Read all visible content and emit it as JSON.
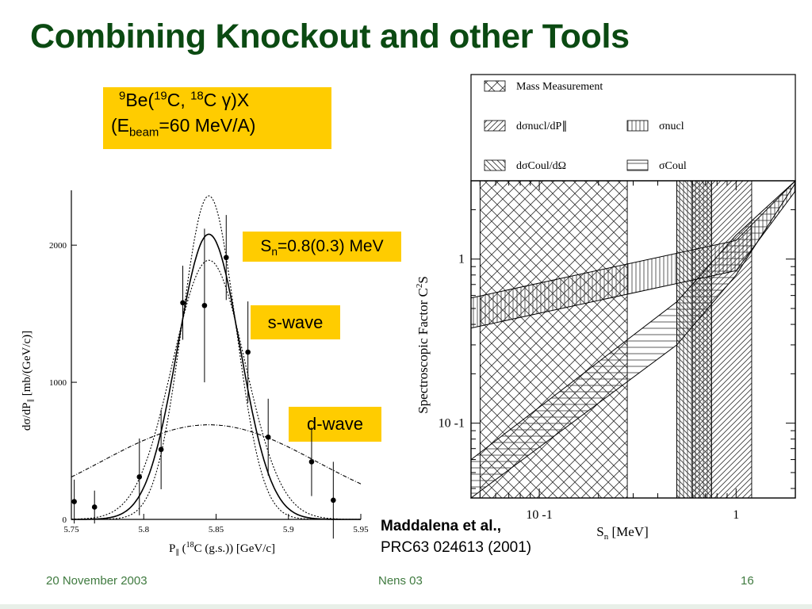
{
  "slide": {
    "title": "Combining Knockout and other Tools",
    "reaction": {
      "target_mass": "9",
      "target": "Be(",
      "proj_mass": "19",
      "proj": "C, ",
      "frag_mass": "18",
      "frag": "C ",
      "gamma": "γ",
      "tail": ")X",
      "beam_open": "(E",
      "beam_sub": "beam",
      "beam_tail": "=60 MeV/A)"
    },
    "sn_label": {
      "main": "S",
      "sub": "n",
      "rest": "=0.8(0.3) MeV"
    },
    "swave_label": "s-wave",
    "dwave_label": "d-wave",
    "citation": {
      "authors": "Maddalena et al.,",
      "ref": "PRC63 024613 (2001)"
    },
    "footer": {
      "date": "20 November 2003",
      "center": "Nens 03",
      "page": "16"
    }
  },
  "chart_data": [
    {
      "type": "scatter",
      "xlabel": "P∥ (18C (g.s.)) [GeV/c]",
      "ylabel": "dσ/dP∥ [mb/(GeV/c)]",
      "xlim": [
        5.75,
        5.95
      ],
      "ylim": [
        0,
        2400
      ],
      "x_ticks": [
        "5.75",
        "5.8",
        "5.85",
        "5.9",
        "5.95"
      ],
      "y_ticks": [
        "0",
        "1000",
        "2000"
      ],
      "points": [
        {
          "x": 5.752,
          "y": 130,
          "err": 160
        },
        {
          "x": 5.766,
          "y": 90,
          "err": 120
        },
        {
          "x": 5.797,
          "y": 310,
          "err": 280
        },
        {
          "x": 5.812,
          "y": 510,
          "err": 290
        },
        {
          "x": 5.827,
          "y": 1580,
          "err": 270
        },
        {
          "x": 5.842,
          "y": 1560,
          "err": 560
        },
        {
          "x": 5.857,
          "y": 1910,
          "err": 310
        },
        {
          "x": 5.872,
          "y": 1220,
          "err": 370
        },
        {
          "x": 5.886,
          "y": 600,
          "err": 280
        },
        {
          "x": 5.916,
          "y": 420,
          "err": 250
        },
        {
          "x": 5.931,
          "y": 140,
          "err": 280
        }
      ],
      "curves": [
        {
          "style": "solid",
          "center": 5.845,
          "peak": 2080,
          "width": 0.0215
        },
        {
          "style": "dotted",
          "center": 5.845,
          "peak": 2360,
          "width": 0.0185
        },
        {
          "style": "dotted",
          "center": 5.845,
          "peak": 1890,
          "width": 0.025
        },
        {
          "style": "dashdot",
          "center": 5.845,
          "peak": 690,
          "width": 0.075
        }
      ]
    },
    {
      "type": "area",
      "xlabel": "Sn [MeV]",
      "ylabel": "Spectroscopic Factor C2S",
      "x_scale": "log",
      "y_scale": "log",
      "xlim": [
        0.045,
        2
      ],
      "ylim": [
        0.035,
        3
      ],
      "x_ticks": [
        {
          "value": 0.1,
          "label": "10 -1"
        },
        {
          "value": 1,
          "label": "1"
        }
      ],
      "y_ticks": [
        {
          "value": 1,
          "label": "1"
        },
        {
          "value": 0.1,
          "label": "10 -1"
        }
      ],
      "legend": [
        {
          "label": "Mass Measurement",
          "pattern": "crosshatch"
        },
        {
          "label": "dσnucl/dP∥",
          "pattern": "diagonal"
        },
        {
          "label": "σnucl",
          "pattern": "vertical"
        },
        {
          "label": "dσCoul/dΩ",
          "pattern": "antidiagonal"
        },
        {
          "label": "σCoul",
          "pattern": "horizontal"
        }
      ],
      "bands": [
        {
          "kind": "vertical-region",
          "pattern": "crosshatch",
          "x_range": [
            0.05,
            0.28
          ]
        },
        {
          "kind": "vertical-region",
          "pattern": "diagonal",
          "x_range": [
            0.6,
            1.2
          ]
        },
        {
          "kind": "vertical-region",
          "pattern": "vertical",
          "x_range": [
            0.5,
            0.75
          ]
        },
        {
          "kind": "vertical-region",
          "pattern": "antidiagonal",
          "x_range": [
            0.5,
            0.75
          ]
        },
        {
          "kind": "sloped-band",
          "pattern": "vertical",
          "lower": [
            [
              0.045,
              0.38
            ],
            [
              1.0,
              0.85
            ],
            [
              2.0,
              2.6
            ]
          ],
          "upper": [
            [
              0.045,
              0.58
            ],
            [
              1.0,
              1.3
            ],
            [
              2.0,
              3.0
            ]
          ]
        },
        {
          "kind": "sloped-band",
          "pattern": "horizontal",
          "lower": [
            [
              0.045,
              0.035
            ],
            [
              0.5,
              0.3
            ],
            [
              1.0,
              0.8
            ],
            [
              2.0,
              2.9
            ]
          ],
          "upper": [
            [
              0.045,
              0.06
            ],
            [
              0.5,
              0.55
            ],
            [
              1.0,
              1.4
            ],
            [
              2.0,
              3.0
            ]
          ]
        }
      ]
    }
  ]
}
